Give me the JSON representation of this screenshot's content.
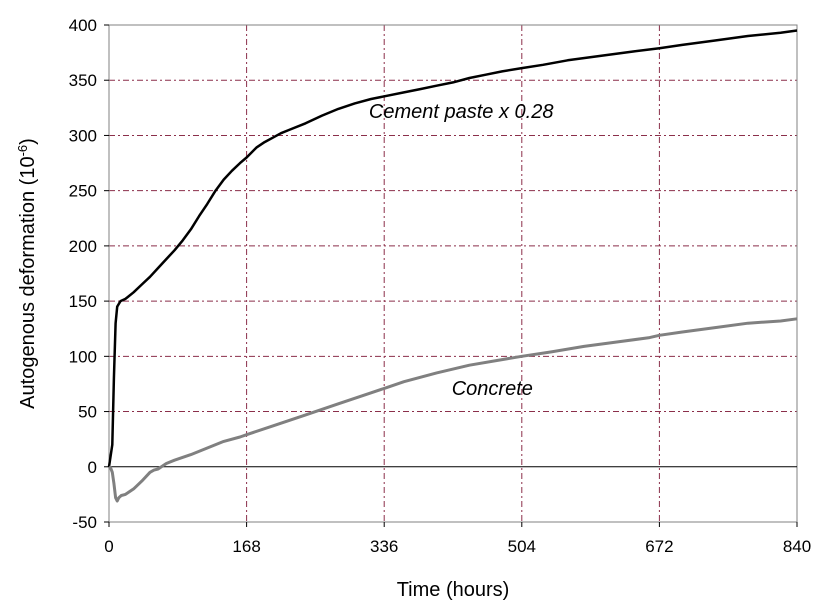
{
  "chart_data": {
    "type": "line",
    "title": "",
    "xlabel": "Time (hours)",
    "ylabel": "Autogenous deformation  (10",
    "ylabel_exponent": "-6",
    "ylabel_close": ")",
    "xlim": [
      0,
      840
    ],
    "ylim": [
      -50,
      400
    ],
    "xticks": [
      0,
      168,
      336,
      504,
      672,
      840
    ],
    "yticks": [
      -50,
      0,
      50,
      100,
      150,
      200,
      250,
      300,
      350,
      400
    ],
    "xtick_labels": [
      "0",
      "168",
      "336",
      "504",
      "672",
      "840"
    ],
    "ytick_labels": [
      "-50",
      "0",
      "50",
      "100",
      "150",
      "200",
      "250",
      "300",
      "350",
      "400"
    ],
    "grid": true,
    "colors": {
      "cement_paste": "#000000",
      "concrete": "#808080",
      "grid": "#8b2f4a",
      "zero_line": "#000000"
    },
    "series": [
      {
        "name": "Cement paste x 0.28",
        "color": "#000000",
        "x": [
          0,
          4,
          6,
          8,
          10,
          14,
          20,
          30,
          40,
          50,
          60,
          70,
          80,
          90,
          100,
          110,
          120,
          130,
          140,
          150,
          160,
          168,
          180,
          190,
          200,
          210,
          220,
          240,
          260,
          280,
          300,
          320,
          340,
          360,
          380,
          400,
          420,
          440,
          460,
          480,
          504,
          530,
          560,
          600,
          640,
          672,
          700,
          740,
          780,
          820,
          840
        ],
        "y": [
          0,
          20,
          80,
          130,
          145,
          150,
          152,
          158,
          165,
          172,
          180,
          188,
          196,
          205,
          215,
          227,
          238,
          250,
          260,
          268,
          275,
          280,
          289,
          294,
          298,
          302,
          305,
          311,
          318,
          324,
          329,
          333,
          336,
          339,
          342,
          345,
          348,
          352,
          355,
          358,
          361,
          364,
          368,
          372,
          376,
          379,
          382,
          386,
          390,
          393,
          395
        ]
      },
      {
        "name": "Concrete",
        "color": "#808080",
        "x": [
          0,
          2,
          4,
          6,
          8,
          10,
          12,
          15,
          20,
          30,
          40,
          50,
          55,
          60,
          70,
          80,
          100,
          120,
          140,
          160,
          168,
          200,
          240,
          280,
          320,
          336,
          360,
          400,
          440,
          480,
          504,
          540,
          580,
          620,
          660,
          672,
          700,
          740,
          780,
          820,
          840
        ],
        "y": [
          0,
          -1,
          -5,
          -15,
          -28,
          -31,
          -28,
          -26,
          -25,
          -20,
          -13,
          -5,
          -3,
          -2,
          3,
          6,
          11,
          17,
          23,
          27,
          29,
          37,
          47,
          57,
          67,
          71,
          77,
          85,
          92,
          97,
          100,
          104,
          109,
          113,
          117,
          119,
          122,
          126,
          130,
          132,
          134
        ]
      }
    ],
    "annotations": [
      {
        "text": "Cement paste x 0.28",
        "x": 430,
        "y": 316
      },
      {
        "text": "Concrete",
        "x": 468,
        "y": 65
      }
    ]
  }
}
